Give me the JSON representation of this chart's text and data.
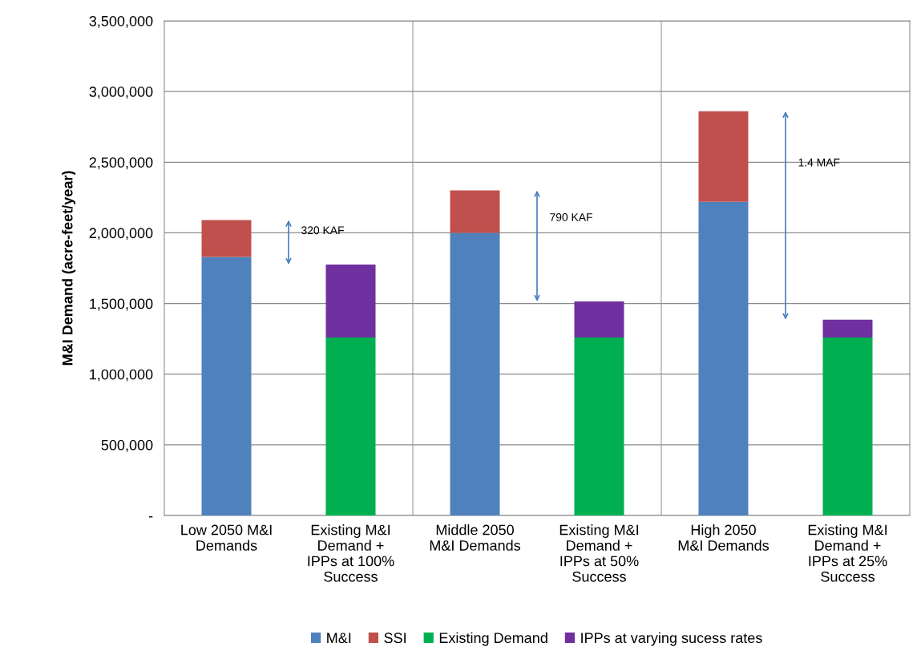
{
  "chart_data": {
    "type": "bar",
    "stacked": true,
    "ylabel": "M&I Demand (acre-feet/year)",
    "categories": [
      "Low 2050 M&I\nDemands",
      "Existing M&I\nDemand +\nIPPs at 100%\nSuccess",
      "Middle 2050\nM&I Demands",
      "Existing M&I\nDemand +\nIPPs at 50%\nSuccess",
      "High 2050\nM&I Demands",
      "Existing M&I\nDemand +\nIPPs at 25%\nSuccess"
    ],
    "series": [
      {
        "name": "M&I",
        "color": "#4f81bd",
        "values": [
          1830000,
          null,
          2000000,
          null,
          2220000,
          null
        ]
      },
      {
        "name": "SSI",
        "color": "#c0504d",
        "values": [
          260000,
          null,
          300000,
          null,
          640000,
          null
        ]
      },
      {
        "name": "Existing Demand",
        "color": "#00b050",
        "values": [
          null,
          1260000,
          null,
          1260000,
          null,
          1260000
        ]
      },
      {
        "name": "IPPs at varying sucess rates",
        "color": "#7030a0",
        "values": [
          null,
          515000,
          null,
          255000,
          null,
          125000
        ]
      }
    ],
    "ylim": [
      0,
      3500000
    ],
    "yticks": [
      {
        "value": 0,
        "label": "-"
      },
      {
        "value": 500000,
        "label": "500,000"
      },
      {
        "value": 1000000,
        "label": "1,000,000"
      },
      {
        "value": 1500000,
        "label": "1,500,000"
      },
      {
        "value": 2000000,
        "label": "2,000,000"
      },
      {
        "value": 2500000,
        "label": "2,500,000"
      },
      {
        "value": 3000000,
        "label": "3,000,000"
      },
      {
        "value": 3500000,
        "label": "3,500,000"
      }
    ],
    "grid": "y",
    "legend": "bottom",
    "annotations": [
      "320 KAF",
      "790 KAF",
      "1.4 MAF"
    ]
  }
}
